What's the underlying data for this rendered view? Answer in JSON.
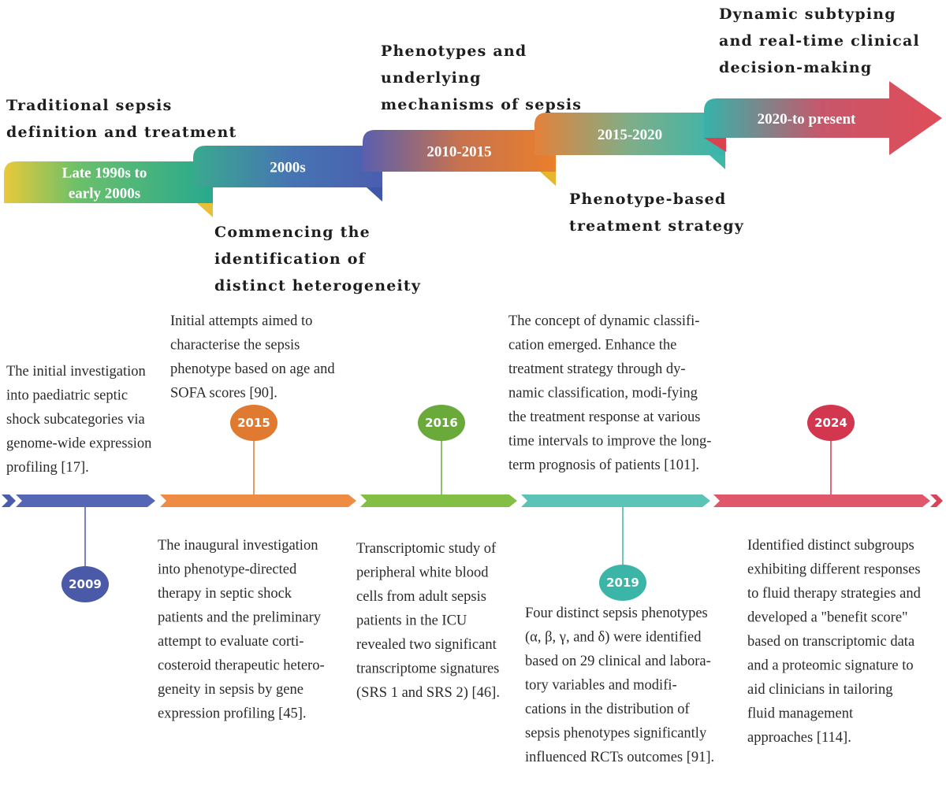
{
  "stages": [
    {
      "label": [
        "Late 1990s to",
        "early 2000s"
      ],
      "heading": [
        "Traditional sepsis",
        "definition and treatment"
      ]
    },
    {
      "label": [
        "2000s"
      ],
      "heading": [
        "Commencing the",
        "identification of",
        "distinct heterogeneity"
      ]
    },
    {
      "label": [
        "2010-2015"
      ],
      "heading": [
        "Phenotypes and",
        "underlying",
        "mechanisms of sepsis"
      ]
    },
    {
      "label": [
        "2015-2020"
      ],
      "heading": [
        "Phenotype-based",
        "treatment strategy"
      ]
    },
    {
      "label": [
        "2020-to present"
      ],
      "heading": [
        "Dynamic subtyping",
        "and real-time clinical",
        "decision-making"
      ]
    }
  ],
  "events": [
    "2009",
    "2015",
    "2016",
    "2019",
    "2024"
  ],
  "notes": [
    [
      "The initial investigation",
      "into paediatric septic",
      "shock subcategories via",
      "genome-wide expression",
      "profiling [17]."
    ],
    [
      "Initial attempts aimed to",
      "characterise the sepsis",
      "phenotype based on age and",
      "SOFA scores [90]."
    ],
    [
      "The inaugural investigation",
      "into phenotype-directed",
      "therapy in septic shock",
      "patients and the preliminary",
      "attempt to evaluate corti-",
      "costeroid therapeutic hetero-",
      "geneity in sepsis by gene",
      "expression profiling [45]."
    ],
    [
      "Transcriptomic study of",
      "peripheral white blood",
      "cells from adult sepsis",
      "patients in the ICU",
      "revealed two significant",
      "transcriptome signatures",
      "(SRS 1 and SRS 2) [46]."
    ],
    [
      "The concept of dynamic classifi-",
      "cation emerged. Enhance the",
      "treatment strategy through dy-",
      "namic classification, modi-fying",
      "the treatment response at various",
      "time intervals to improve the long-",
      "term prognosis of patients [101]."
    ],
    [
      "Four distinct sepsis phenotypes",
      "(α, β, γ, and δ) were identified",
      "based on 29 clinical and labora-",
      "tory variables and modifi-",
      "cations in the distribution of",
      "sepsis phenotypes significantly",
      "influenced RCTs outcomes [91]."
    ],
    [
      "Identified distinct subgroups",
      "exhibiting different responses",
      "to fluid therapy strategies and",
      "developed a \"benefit score\"",
      "based on transcriptomic data",
      "and a proteomic signature to",
      "aid clinicians in tailoring",
      "fluid management",
      "approaches [114]."
    ]
  ]
}
